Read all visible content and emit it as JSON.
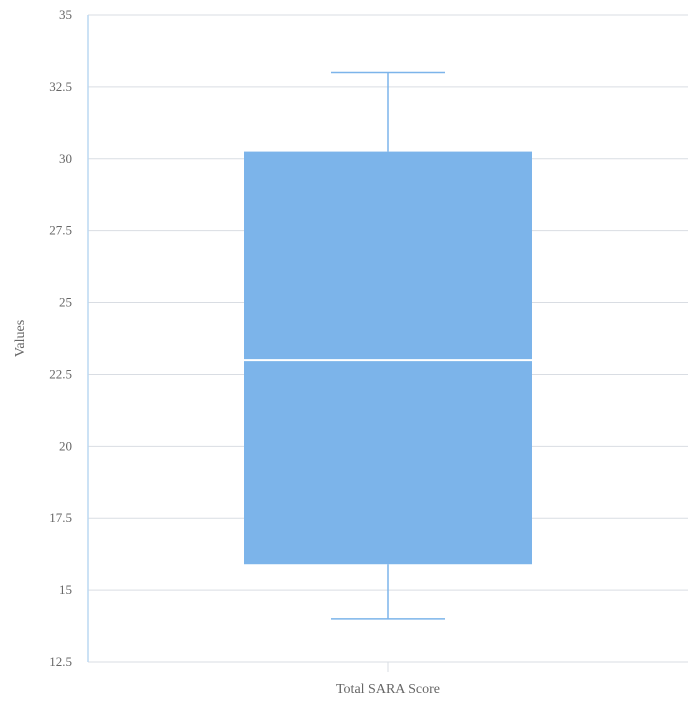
{
  "chart_data": {
    "type": "box",
    "xlabel": "Total SARA Score",
    "ylabel": "Values",
    "ylim": [
      12.5,
      35
    ],
    "yticks": [
      "12.5",
      "15",
      "17.5",
      "20",
      "22.5",
      "25",
      "27.5",
      "30",
      "32.5",
      "35"
    ],
    "categories": [
      "Total SARA Score"
    ],
    "boxes": [
      {
        "category": "Total SARA Score",
        "whisker_low": 14,
        "q1": 15.9,
        "median": 23,
        "q3": 30.25,
        "whisker_high": 33
      }
    ],
    "grid": true,
    "colors": {
      "box_fill": "#7cb4ea",
      "whisker": "#7cb4ea",
      "median": "#ffffff",
      "grid": "#d9dde3",
      "axis": "#bcd8f2"
    }
  }
}
